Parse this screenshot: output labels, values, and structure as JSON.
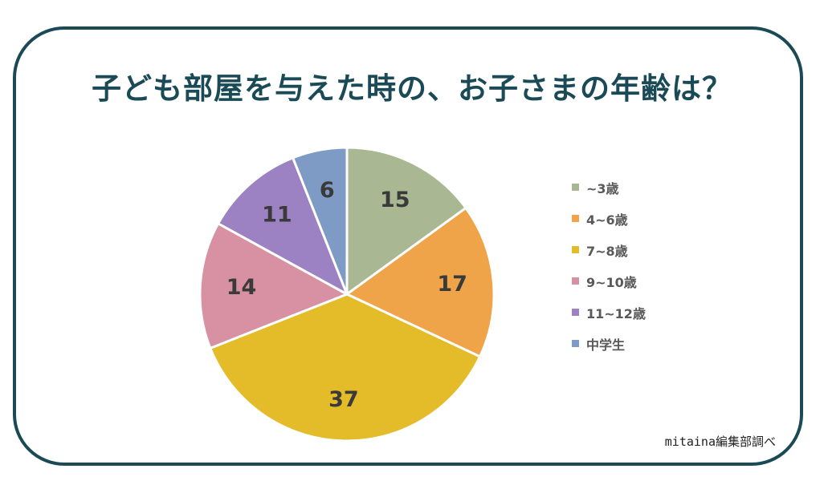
{
  "title": "子ども部屋を与えた時の、お子さまの年齢は？",
  "source": "mitaina編集部調べ",
  "chart_data": {
    "type": "pie",
    "title": "子ども部屋を与えた時の、お子さまの年齢は？",
    "categories": [
      "~3歳",
      "4~6歳",
      "7~8歳",
      "9~10歳",
      "11~12歳",
      "中学生"
    ],
    "values": [
      15,
      17,
      37,
      14,
      11,
      6
    ],
    "colors": [
      "#a9b893",
      "#f0a44a",
      "#e4bc29",
      "#d791a3",
      "#9c82c2",
      "#7d9bc4"
    ],
    "legend": "right",
    "data_labels": true
  }
}
